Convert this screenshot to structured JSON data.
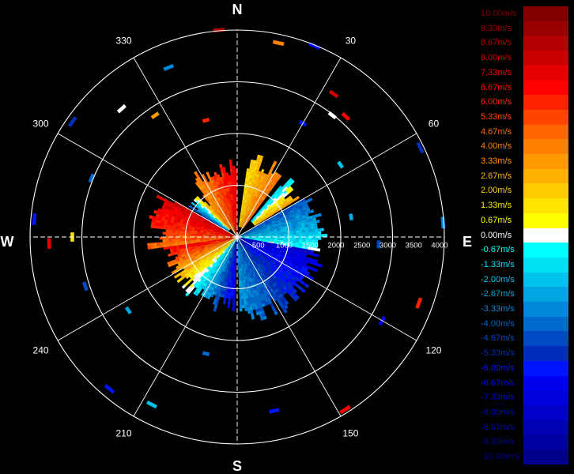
{
  "chart_data": {
    "type": "polar-radar",
    "compass": {
      "north": "N",
      "east": "E",
      "south": "S",
      "west": "W"
    },
    "angle_labels": [
      {
        "deg": 30,
        "text": "30"
      },
      {
        "deg": 60,
        "text": "60"
      },
      {
        "deg": 120,
        "text": "120"
      },
      {
        "deg": 150,
        "text": "150"
      },
      {
        "deg": 210,
        "text": "210"
      },
      {
        "deg": 240,
        "text": "240"
      },
      {
        "deg": 300,
        "text": "300"
      },
      {
        "deg": 330,
        "text": "330"
      }
    ],
    "range_max": 4000,
    "range_ticks": [
      {
        "value": 500,
        "text": "500"
      },
      {
        "value": 1000,
        "text": "1000"
      },
      {
        "value": 1500,
        "text": "1500"
      },
      {
        "value": 2000,
        "text": "2000"
      },
      {
        "value": 2500,
        "text": "2500"
      },
      {
        "value": 3000,
        "text": "3000"
      },
      {
        "value": 3500,
        "text": "3500"
      },
      {
        "value": 4000,
        "text": "4000"
      }
    ],
    "rings": [
      1000,
      2000,
      3000,
      4000
    ],
    "legend": [
      {
        "text": "10.00m/s",
        "value": 10.0,
        "color": "#800000"
      },
      {
        "text": "9.33m/s",
        "value": 9.33,
        "color": "#990000"
      },
      {
        "text": "8.67m/s",
        "value": 8.67,
        "color": "#b30000"
      },
      {
        "text": "8.00m/s",
        "value": 8.0,
        "color": "#cc0000"
      },
      {
        "text": "7.33m/s",
        "value": 7.33,
        "color": "#e60000"
      },
      {
        "text": "6.67m/s",
        "value": 6.67,
        "color": "#ff0000"
      },
      {
        "text": "6.00m/s",
        "value": 6.0,
        "color": "#ff2200"
      },
      {
        "text": "5.33m/s",
        "value": 5.33,
        "color": "#ff4400"
      },
      {
        "text": "4.67m/s",
        "value": 4.67,
        "color": "#ff6600"
      },
      {
        "text": "4.00m/s",
        "value": 4.0,
        "color": "#ff8000"
      },
      {
        "text": "3.33m/s",
        "value": 3.33,
        "color": "#ff9900"
      },
      {
        "text": "2.67m/s",
        "value": 2.67,
        "color": "#ffb300"
      },
      {
        "text": "2.00m/s",
        "value": 2.0,
        "color": "#ffcc00"
      },
      {
        "text": "1.33m/s",
        "value": 1.33,
        "color": "#ffe600"
      },
      {
        "text": "0.67m/s",
        "value": 0.67,
        "color": "#ffff00"
      },
      {
        "text": "0.00m/s",
        "value": 0.0,
        "color": "#ffffff"
      },
      {
        "text": "-0.67m/s",
        "value": -0.67,
        "color": "#00ffff"
      },
      {
        "text": "-1.33m/s",
        "value": -1.33,
        "color": "#00e1f5"
      },
      {
        "text": "-2.00m/s",
        "value": -2.0,
        "color": "#00c3eb"
      },
      {
        "text": "-2.67m/s",
        "value": -2.67,
        "color": "#00a5e1"
      },
      {
        "text": "-3.33m/s",
        "value": -3.33,
        "color": "#0087d7"
      },
      {
        "text": "-4.00m/s",
        "value": -4.0,
        "color": "#0069cd"
      },
      {
        "text": "-4.67m/s",
        "value": -4.67,
        "color": "#004bc3"
      },
      {
        "text": "-5.33m/s",
        "value": -5.33,
        "color": "#002db9"
      },
      {
        "text": "-6.00m/s",
        "value": -6.0,
        "color": "#0014ff"
      },
      {
        "text": "-6.67m/s",
        "value": -6.67,
        "color": "#0000f0"
      },
      {
        "text": "-7.33m/s",
        "value": -7.33,
        "color": "#0000dc"
      },
      {
        "text": "-8.00m/s",
        "value": -8.0,
        "color": "#0000c8"
      },
      {
        "text": "-8.67m/s",
        "value": -8.67,
        "color": "#0000b4"
      },
      {
        "text": "-9.33m/s",
        "value": -9.33,
        "color": "#0000a0"
      },
      {
        "text": "-10.00m/s",
        "value": -10.0,
        "color": "#00008c"
      }
    ],
    "regions": [
      {
        "az": [
          322,
          360
        ],
        "range": [
          0,
          1500
        ],
        "v": [
          3.5,
          7.5
        ]
      },
      {
        "az": [
          8,
          35
        ],
        "range": [
          200,
          1650
        ],
        "v": [
          1.5,
          4.5
        ]
      },
      {
        "az": [
          40,
          58
        ],
        "range": [
          400,
          1500
        ],
        "v": [
          -1.5,
          3.5
        ]
      },
      {
        "az": [
          60,
          100
        ],
        "range": [
          0,
          1700
        ],
        "v": [
          -4.5,
          -0.5
        ]
      },
      {
        "az": [
          100,
          178
        ],
        "range": [
          0,
          1700
        ],
        "v": [
          -7.5,
          -3.0
        ]
      },
      {
        "az": [
          182,
          262
        ],
        "range": [
          0,
          1500
        ],
        "v": [
          -7.0,
          7.0
        ]
      },
      {
        "az": [
          262,
          300
        ],
        "range": [
          0,
          1700
        ],
        "v": [
          4.5,
          8.0
        ]
      },
      {
        "az": [
          300,
          322
        ],
        "range": [
          200,
          1100
        ],
        "v": [
          -5.0,
          5.0
        ]
      }
    ],
    "scatter": [
      {
        "az": 355,
        "r": 3980,
        "v": 8.67
      },
      {
        "az": 12,
        "r": 3800,
        "v": 4.0
      },
      {
        "az": 22,
        "r": 3950,
        "v": -6.67
      },
      {
        "az": 34,
        "r": 3300,
        "v": 8.0
      },
      {
        "az": 38,
        "r": 2950,
        "v": 0.0
      },
      {
        "az": 42,
        "r": 3100,
        "v": 6.67
      },
      {
        "az": 55,
        "r": 2400,
        "v": -2.0
      },
      {
        "az": 64,
        "r": 3900,
        "v": -5.33
      },
      {
        "az": 80,
        "r": 2200,
        "v": -2.67
      },
      {
        "az": 86,
        "r": 3950,
        "v": -3.33
      },
      {
        "az": 93,
        "r": 2700,
        "v": -4.67
      },
      {
        "az": 110,
        "r": 3700,
        "v": 6.0
      },
      {
        "az": 120,
        "r": 3200,
        "v": -6.67
      },
      {
        "az": 148,
        "r": 3900,
        "v": 6.67
      },
      {
        "az": 168,
        "r": 3400,
        "v": -6.0
      },
      {
        "az": 195,
        "r": 2300,
        "v": -4.0
      },
      {
        "az": 207,
        "r": 3600,
        "v": -2.0
      },
      {
        "az": 220,
        "r": 3800,
        "v": -6.0
      },
      {
        "az": 236,
        "r": 2500,
        "v": -2.67
      },
      {
        "az": 252,
        "r": 3050,
        "v": -4.67
      },
      {
        "az": 268,
        "r": 3600,
        "v": 7.33
      },
      {
        "az": 270,
        "r": 3150,
        "v": 1.33
      },
      {
        "az": 275,
        "r": 3900,
        "v": -6.0
      },
      {
        "az": 292,
        "r": 3000,
        "v": -4.0
      },
      {
        "az": 305,
        "r": 3850,
        "v": -5.33
      },
      {
        "az": 318,
        "r": 3300,
        "v": 0.0
      },
      {
        "az": 326,
        "r": 2800,
        "v": 3.33
      },
      {
        "az": 338,
        "r": 3500,
        "v": -3.33
      },
      {
        "az": 345,
        "r": 2300,
        "v": 6.0
      },
      {
        "az": 30,
        "r": 2500,
        "v": -6.0
      }
    ]
  }
}
